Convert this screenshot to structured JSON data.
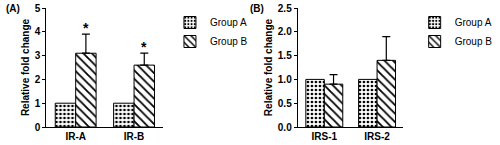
{
  "chart_data": [
    {
      "type": "bar",
      "title": "(A)",
      "ylabel": "Relative fold change",
      "categories": [
        "IR-A",
        "IR-B"
      ],
      "series": [
        {
          "name": "Group A",
          "color": "#000000",
          "marker": "dots",
          "values": [
            1,
            1
          ]
        },
        {
          "name": "Group B",
          "color": "#000000",
          "marker": "hatch",
          "values": [
            3.1,
            2.6
          ],
          "errors": [
            0.8,
            0.5
          ]
        }
      ],
      "ylim": [
        0,
        5
      ],
      "yticks": [
        0,
        1,
        2,
        3,
        4,
        5
      ],
      "legend": "right",
      "annotations": [
        {
          "category": "IR-A",
          "series": "Group B",
          "text": "*"
        },
        {
          "category": "IR-B",
          "series": "Group B",
          "text": "*"
        }
      ]
    },
    {
      "type": "bar",
      "title": "(B)",
      "ylabel": "Relative fold change",
      "categories": [
        "IRS-1",
        "IRS-2"
      ],
      "series": [
        {
          "name": "Group A",
          "color": "#000000",
          "marker": "dots",
          "values": [
            1,
            1
          ]
        },
        {
          "name": "Group B",
          "color": "#000000",
          "marker": "hatch",
          "values": [
            0.9,
            1.4
          ],
          "errors": [
            0.2,
            0.5
          ]
        }
      ],
      "ylim": [
        0,
        2.5
      ],
      "yticks": [
        {
          "value": 0,
          "label": "0.0"
        },
        {
          "value": 0.5,
          "label": "0.5"
        },
        {
          "value": 1,
          "label": "1.0"
        },
        {
          "value": 1.5,
          "label": "1.5"
        },
        {
          "value": 2,
          "label": "2.0"
        },
        {
          "value": 2.5,
          "label": "2.5"
        }
      ],
      "legend": "right"
    }
  ]
}
